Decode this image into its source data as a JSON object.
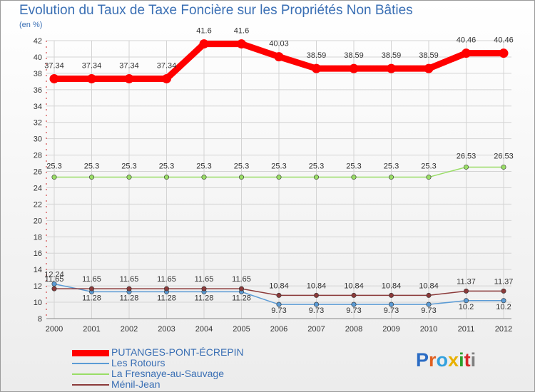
{
  "chart_data": {
    "type": "line",
    "title": "Evolution du Taux de Taxe Foncière sur les Propriétés Non Bâties",
    "ylabel": "(en %)",
    "xlabel": "",
    "categories": [
      "2000",
      "2001",
      "2002",
      "2003",
      "2004",
      "2005",
      "2006",
      "2007",
      "2008",
      "2009",
      "2010",
      "2011",
      "2012"
    ],
    "ylim": [
      8,
      42
    ],
    "yticks": [
      8,
      10,
      12,
      14,
      16,
      18,
      20,
      22,
      24,
      26,
      28,
      30,
      32,
      34,
      36,
      38,
      40,
      42
    ],
    "series": [
      {
        "name": "PUTANGES-PONT-ÉCREPIN",
        "color": "#ff0000",
        "values": [
          37.34,
          37.34,
          37.34,
          37.34,
          41.6,
          41.6,
          40.03,
          38.59,
          38.59,
          38.59,
          38.59,
          40.46,
          40.46
        ],
        "labels": [
          "37.34",
          "37.34",
          "37.34",
          "37.34",
          "41.6",
          "41.6",
          "40.03",
          "38.59",
          "38.59",
          "38.59",
          "38.59",
          "40.46",
          "40.46"
        ]
      },
      {
        "name": "Les Rotours",
        "color": "#5b9bd5",
        "values": [
          12.24,
          11.28,
          11.28,
          11.28,
          11.28,
          11.28,
          9.73,
          9.73,
          9.73,
          9.73,
          9.73,
          10.2,
          10.2
        ],
        "labels": [
          "12.24",
          "11.28",
          "11.28",
          "11.28",
          "11.28",
          "11.28",
          "9.73",
          "9.73",
          "9.73",
          "9.73",
          "9.73",
          "10.2",
          "10.2"
        ]
      },
      {
        "name": "La Fresnaye-au-Sauvage",
        "color": "#99dd66",
        "values": [
          25.3,
          25.3,
          25.3,
          25.3,
          25.3,
          25.3,
          25.3,
          25.3,
          25.3,
          25.3,
          25.3,
          26.53,
          26.53
        ],
        "labels": [
          "25.3",
          "25.3",
          "25.3",
          "25.3",
          "25.3",
          "25.3",
          "25.3",
          "25.3",
          "25.3",
          "25.3",
          "25.3",
          "26.53",
          "26.53"
        ]
      },
      {
        "name": "Ménil-Jean",
        "color": "#8b3a3a",
        "values": [
          11.65,
          11.65,
          11.65,
          11.65,
          11.65,
          11.65,
          10.84,
          10.84,
          10.84,
          10.84,
          10.84,
          11.37,
          11.37
        ],
        "labels": [
          "11.65",
          "11.65",
          "11.65",
          "11.65",
          "11.65",
          "11.65",
          "10.84",
          "10.84",
          "10.84",
          "10.84",
          "10.84",
          "11.37",
          "11.37"
        ]
      }
    ],
    "legend_position": "bottom-left"
  },
  "logo": {
    "letters": [
      "P",
      "r",
      "o",
      "x",
      "i",
      "t",
      "i"
    ],
    "colors": [
      "#2b6cc4",
      "#e06020",
      "#33a1de",
      "#e8b000",
      "#2ca02c",
      "#d62728",
      "#7f7f7f"
    ]
  }
}
